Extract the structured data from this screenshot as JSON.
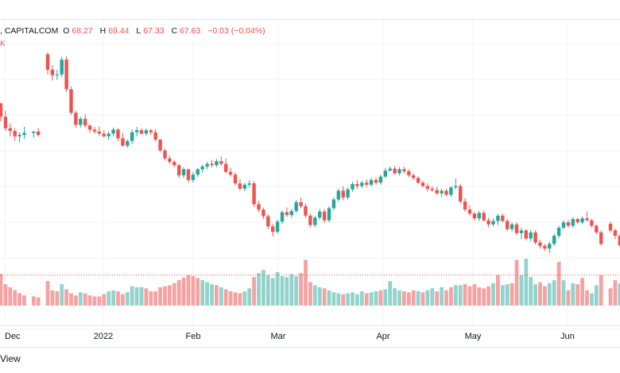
{
  "legend": {
    "symbol_suffix": ", CAPITALCOM",
    "open_label": "O",
    "open": "68.27",
    "high_label": "H",
    "high": "69.44",
    "low_label": "L",
    "low": "67.33",
    "close_label": "C",
    "close": "67.63",
    "change": "−0.03 (−0.04%)",
    "volume_suffix": "K"
  },
  "footer": {
    "view_label": "View"
  },
  "colors": {
    "up": "#26a69a",
    "down": "#ef5350",
    "up_vol": "#93d3cc",
    "down_vol": "#f5a3a2",
    "grid": "#f0f3fa"
  },
  "chart_data": {
    "type": "candlestick",
    "x_ticks": [
      "Dec",
      "2022",
      "Feb",
      "Mar",
      "Apr",
      "May",
      "Jun"
    ],
    "candles": [
      [
        73.3,
        73.4,
        70.6,
        71.3
      ],
      [
        71.3,
        72.2,
        69.2,
        69.6
      ],
      [
        69.6,
        70.3,
        68.4,
        69.2
      ],
      [
        69.2,
        69.6,
        67.7,
        68.4
      ],
      [
        68.4,
        69.0,
        67.5,
        68.6
      ],
      [
        68.6,
        69.8,
        68.0,
        68.9
      ],
      [
        null,
        null,
        null,
        null
      ],
      [
        68.9,
        69.2,
        68.2,
        69.1
      ],
      [
        69.1,
        69.6,
        68.4,
        68.6
      ],
      [
        null,
        null,
        null,
        null
      ],
      [
        80.6,
        80.9,
        77.6,
        78.3
      ],
      [
        78.3,
        79.0,
        76.7,
        77.5
      ],
      [
        77.5,
        78.3,
        76.8,
        77.6
      ],
      [
        77.6,
        80.2,
        77.2,
        79.8
      ],
      [
        79.8,
        80.3,
        75.0,
        75.4
      ],
      [
        75.4,
        75.8,
        71.6,
        71.9
      ],
      [
        71.9,
        72.2,
        69.7,
        70.1
      ],
      [
        70.1,
        71.3,
        69.7,
        71.0
      ],
      [
        71.0,
        71.7,
        69.7,
        70.0
      ],
      [
        70.0,
        70.2,
        68.9,
        69.4
      ],
      [
        69.4,
        69.8,
        68.8,
        69.1
      ],
      [
        69.1,
        69.9,
        68.5,
        68.8
      ],
      [
        68.8,
        69.3,
        68.2,
        68.4
      ],
      [
        68.4,
        69.2,
        67.9,
        68.8
      ],
      [
        68.8,
        69.7,
        68.4,
        69.4
      ],
      [
        69.4,
        69.6,
        67.7,
        68.1
      ],
      [
        68.1,
        68.9,
        66.9,
        67.0
      ],
      [
        67.0,
        67.9,
        66.7,
        67.7
      ],
      [
        67.7,
        69.4,
        67.3,
        69.0
      ],
      [
        69.0,
        69.8,
        68.4,
        69.3
      ],
      [
        69.3,
        69.6,
        68.6,
        68.8
      ],
      [
        68.8,
        69.6,
        68.5,
        69.3
      ],
      [
        69.3,
        69.5,
        68.6,
        69.0
      ],
      [
        69.0,
        69.5,
        67.6,
        67.9
      ],
      [
        67.9,
        68.0,
        66.1,
        66.3
      ],
      [
        66.3,
        66.6,
        64.8,
        65.1
      ],
      [
        65.1,
        65.5,
        64.3,
        64.6
      ],
      [
        64.6,
        64.8,
        63.8,
        64.1
      ],
      [
        64.1,
        64.3,
        62.2,
        62.6
      ],
      [
        62.6,
        63.8,
        62.2,
        63.5
      ],
      [
        63.5,
        63.6,
        61.5,
        61.9
      ],
      [
        61.9,
        63.1,
        61.5,
        62.7
      ],
      [
        62.7,
        63.7,
        62.4,
        63.5
      ],
      [
        63.5,
        64.2,
        63.0,
        63.9
      ],
      [
        63.9,
        64.6,
        63.5,
        64.3
      ],
      [
        64.3,
        64.9,
        63.8,
        64.1
      ],
      [
        64.1,
        65.0,
        63.8,
        64.7
      ],
      [
        64.7,
        65.4,
        64.0,
        64.3
      ],
      [
        64.3,
        65.1,
        62.9,
        63.1
      ],
      [
        63.1,
        63.7,
        62.4,
        62.7
      ],
      [
        62.7,
        63.0,
        61.1,
        61.4
      ],
      [
        61.4,
        62.0,
        60.3,
        60.6
      ],
      [
        60.6,
        61.5,
        60.2,
        61.2
      ],
      [
        61.2,
        61.9,
        60.8,
        61.4
      ],
      [
        61.4,
        61.7,
        57.9,
        58.3
      ],
      [
        58.3,
        58.8,
        57.1,
        57.5
      ],
      [
        57.5,
        57.8,
        56.1,
        56.5
      ],
      [
        56.5,
        56.8,
        54.6,
        55.0
      ],
      [
        55.0,
        55.4,
        53.5,
        54.2
      ],
      [
        54.2,
        56.0,
        53.9,
        55.7
      ],
      [
        55.7,
        57.4,
        55.4,
        57.1
      ],
      [
        57.1,
        57.8,
        56.4,
        56.7
      ],
      [
        56.7,
        57.6,
        56.3,
        57.3
      ],
      [
        57.3,
        58.9,
        57.0,
        58.6
      ],
      [
        58.6,
        59.3,
        57.7,
        58.0
      ],
      [
        58.0,
        58.4,
        56.3,
        56.6
      ],
      [
        56.6,
        56.9,
        54.9,
        55.2
      ],
      [
        55.2,
        56.6,
        54.9,
        56.3
      ],
      [
        56.3,
        57.6,
        56.0,
        57.2
      ],
      [
        57.2,
        57.6,
        55.5,
        55.9
      ],
      [
        55.9,
        58.0,
        55.6,
        57.7
      ],
      [
        57.7,
        59.3,
        57.4,
        59.0
      ],
      [
        59.0,
        60.6,
        58.7,
        60.3
      ],
      [
        60.3,
        61.0,
        58.9,
        59.3
      ],
      [
        59.3,
        60.8,
        59.0,
        60.5
      ],
      [
        60.5,
        61.6,
        60.2,
        61.3
      ],
      [
        61.3,
        61.9,
        60.6,
        61.0
      ],
      [
        61.0,
        61.8,
        60.7,
        61.5
      ],
      [
        61.5,
        62.0,
        60.8,
        61.2
      ],
      [
        61.2,
        62.2,
        60.9,
        61.9
      ],
      [
        61.9,
        62.3,
        61.2,
        61.5
      ],
      [
        61.5,
        62.7,
        61.2,
        62.4
      ],
      [
        62.4,
        63.7,
        62.2,
        63.3
      ],
      [
        63.3,
        63.9,
        63.1,
        63.6
      ],
      [
        63.6,
        64.0,
        62.7,
        62.9
      ],
      [
        62.9,
        63.8,
        62.6,
        63.5
      ],
      [
        63.5,
        63.9,
        62.9,
        63.2
      ],
      [
        63.2,
        63.5,
        62.3,
        62.6
      ],
      [
        62.6,
        62.9,
        61.9,
        62.2
      ],
      [
        62.2,
        62.5,
        61.3,
        61.5
      ],
      [
        61.5,
        61.8,
        60.8,
        61.0
      ],
      [
        61.0,
        61.4,
        60.2,
        60.6
      ],
      [
        60.6,
        61.0,
        60.1,
        60.4
      ],
      [
        60.4,
        60.9,
        59.7,
        59.9
      ],
      [
        59.9,
        60.6,
        59.4,
        60.3
      ],
      [
        60.3,
        60.6,
        59.5,
        59.7
      ],
      [
        59.7,
        61.0,
        59.4,
        60.8
      ],
      [
        60.8,
        62.1,
        60.5,
        61.0
      ],
      [
        61.0,
        61.3,
        58.4,
        58.7
      ],
      [
        58.7,
        59.2,
        57.2,
        57.5
      ],
      [
        57.5,
        58.1,
        56.6,
        56.9
      ],
      [
        56.9,
        57.2,
        55.9,
        56.2
      ],
      [
        56.2,
        57.3,
        55.8,
        57.0
      ],
      [
        57.0,
        57.4,
        55.7,
        55.9
      ],
      [
        55.9,
        56.3,
        54.9,
        55.3
      ],
      [
        55.3,
        56.2,
        55.0,
        55.8
      ],
      [
        55.8,
        56.9,
        55.2,
        56.6
      ],
      [
        56.6,
        56.9,
        55.6,
        55.8
      ],
      [
        55.8,
        56.1,
        54.3,
        54.6
      ],
      [
        54.6,
        55.6,
        54.2,
        55.3
      ],
      [
        55.3,
        55.6,
        53.7,
        54.0
      ],
      [
        54.0,
        54.8,
        53.1,
        54.4
      ],
      [
        54.4,
        54.6,
        52.9,
        53.2
      ],
      [
        53.2,
        54.5,
        52.8,
        54.1
      ],
      [
        54.1,
        54.4,
        52.3,
        52.6
      ],
      [
        52.6,
        53.0,
        51.7,
        52.1
      ],
      [
        52.1,
        52.4,
        51.3,
        51.7
      ],
      [
        51.7,
        52.7,
        51.0,
        52.4
      ],
      [
        52.4,
        53.9,
        52.1,
        53.6
      ],
      [
        53.6,
        55.1,
        53.3,
        54.8
      ],
      [
        54.8,
        55.9,
        54.5,
        55.6
      ],
      [
        55.6,
        55.9,
        54.8,
        55.1
      ],
      [
        55.1,
        56.4,
        54.8,
        56.1
      ],
      [
        56.1,
        56.3,
        55.3,
        55.6
      ],
      [
        55.6,
        56.5,
        55.3,
        56.2
      ],
      [
        56.2,
        57.2,
        55.8,
        55.9
      ],
      [
        55.9,
        56.1,
        54.8,
        55.1
      ],
      [
        55.1,
        55.3,
        53.8,
        54.1
      ],
      [
        54.1,
        54.4,
        52.1,
        52.4
      ],
      [
        null,
        null,
        null,
        null
      ],
      [
        55.4,
        55.7,
        54.1,
        54.4
      ],
      [
        54.4,
        54.7,
        53.1,
        53.6
      ],
      [
        53.6,
        53.8,
        52.0,
        52.2
      ]
    ],
    "volume": [
      [
        62,
        0
      ],
      [
        42,
        0
      ],
      [
        36,
        0
      ],
      [
        30,
        0
      ],
      [
        24,
        0
      ],
      [
        20,
        0
      ],
      [
        null,
        0
      ],
      [
        18,
        0
      ],
      [
        16,
        0
      ],
      [
        null,
        0
      ],
      [
        48,
        0
      ],
      [
        30,
        0
      ],
      [
        28,
        0
      ],
      [
        42,
        1
      ],
      [
        32,
        0
      ],
      [
        24,
        0
      ],
      [
        20,
        0
      ],
      [
        26,
        1
      ],
      [
        24,
        0
      ],
      [
        20,
        0
      ],
      [
        18,
        0
      ],
      [
        18,
        0
      ],
      [
        22,
        0
      ],
      [
        28,
        1
      ],
      [
        30,
        1
      ],
      [
        28,
        0
      ],
      [
        22,
        0
      ],
      [
        26,
        1
      ],
      [
        38,
        1
      ],
      [
        36,
        1
      ],
      [
        36,
        1
      ],
      [
        34,
        0
      ],
      [
        28,
        0
      ],
      [
        28,
        0
      ],
      [
        36,
        0
      ],
      [
        38,
        0
      ],
      [
        40,
        0
      ],
      [
        44,
        0
      ],
      [
        50,
        0
      ],
      [
        55,
        0
      ],
      [
        60,
        0
      ],
      [
        58,
        0
      ],
      [
        54,
        0
      ],
      [
        50,
        1
      ],
      [
        46,
        1
      ],
      [
        42,
        1
      ],
      [
        40,
        0
      ],
      [
        36,
        1
      ],
      [
        32,
        0
      ],
      [
        28,
        0
      ],
      [
        26,
        0
      ],
      [
        24,
        0
      ],
      [
        28,
        1
      ],
      [
        34,
        1
      ],
      [
        56,
        0
      ],
      [
        64,
        1
      ],
      [
        70,
        1
      ],
      [
        60,
        1
      ],
      [
        54,
        1
      ],
      [
        66,
        1
      ],
      [
        58,
        1
      ],
      [
        56,
        1
      ],
      [
        62,
        1
      ],
      [
        58,
        1
      ],
      [
        64,
        0
      ],
      [
        90,
        0
      ],
      [
        46,
        0
      ],
      [
        40,
        1
      ],
      [
        36,
        1
      ],
      [
        34,
        0
      ],
      [
        30,
        1
      ],
      [
        26,
        1
      ],
      [
        24,
        1
      ],
      [
        22,
        0
      ],
      [
        24,
        1
      ],
      [
        26,
        1
      ],
      [
        22,
        1
      ],
      [
        28,
        1
      ],
      [
        24,
        0
      ],
      [
        26,
        1
      ],
      [
        28,
        1
      ],
      [
        30,
        0
      ],
      [
        32,
        1
      ],
      [
        48,
        1
      ],
      [
        34,
        1
      ],
      [
        30,
        1
      ],
      [
        28,
        0
      ],
      [
        26,
        0
      ],
      [
        30,
        0
      ],
      [
        28,
        1
      ],
      [
        26,
        0
      ],
      [
        30,
        1
      ],
      [
        34,
        1
      ],
      [
        28,
        0
      ],
      [
        36,
        1
      ],
      [
        30,
        0
      ],
      [
        36,
        0
      ],
      [
        40,
        1
      ],
      [
        40,
        1
      ],
      [
        42,
        0
      ],
      [
        38,
        0
      ],
      [
        42,
        0
      ],
      [
        36,
        0
      ],
      [
        34,
        0
      ],
      [
        38,
        0
      ],
      [
        44,
        1
      ],
      [
        60,
        0
      ],
      [
        40,
        1
      ],
      [
        42,
        1
      ],
      [
        44,
        0
      ],
      [
        90,
        0
      ],
      [
        60,
        1
      ],
      [
        92,
        1
      ],
      [
        56,
        1
      ],
      [
        42,
        1
      ],
      [
        46,
        0
      ],
      [
        38,
        0
      ],
      [
        44,
        1
      ],
      [
        50,
        1
      ],
      [
        86,
        0
      ],
      [
        50,
        1
      ],
      [
        30,
        0
      ],
      [
        44,
        1
      ],
      [
        42,
        0
      ],
      [
        54,
        0
      ],
      [
        30,
        0
      ],
      [
        24,
        1
      ],
      [
        40,
        1
      ],
      [
        60,
        0
      ],
      [
        null,
        0
      ],
      [
        34,
        0
      ],
      [
        50,
        0
      ],
      [
        44,
        1
      ]
    ],
    "volume_reference": 0.6
  }
}
